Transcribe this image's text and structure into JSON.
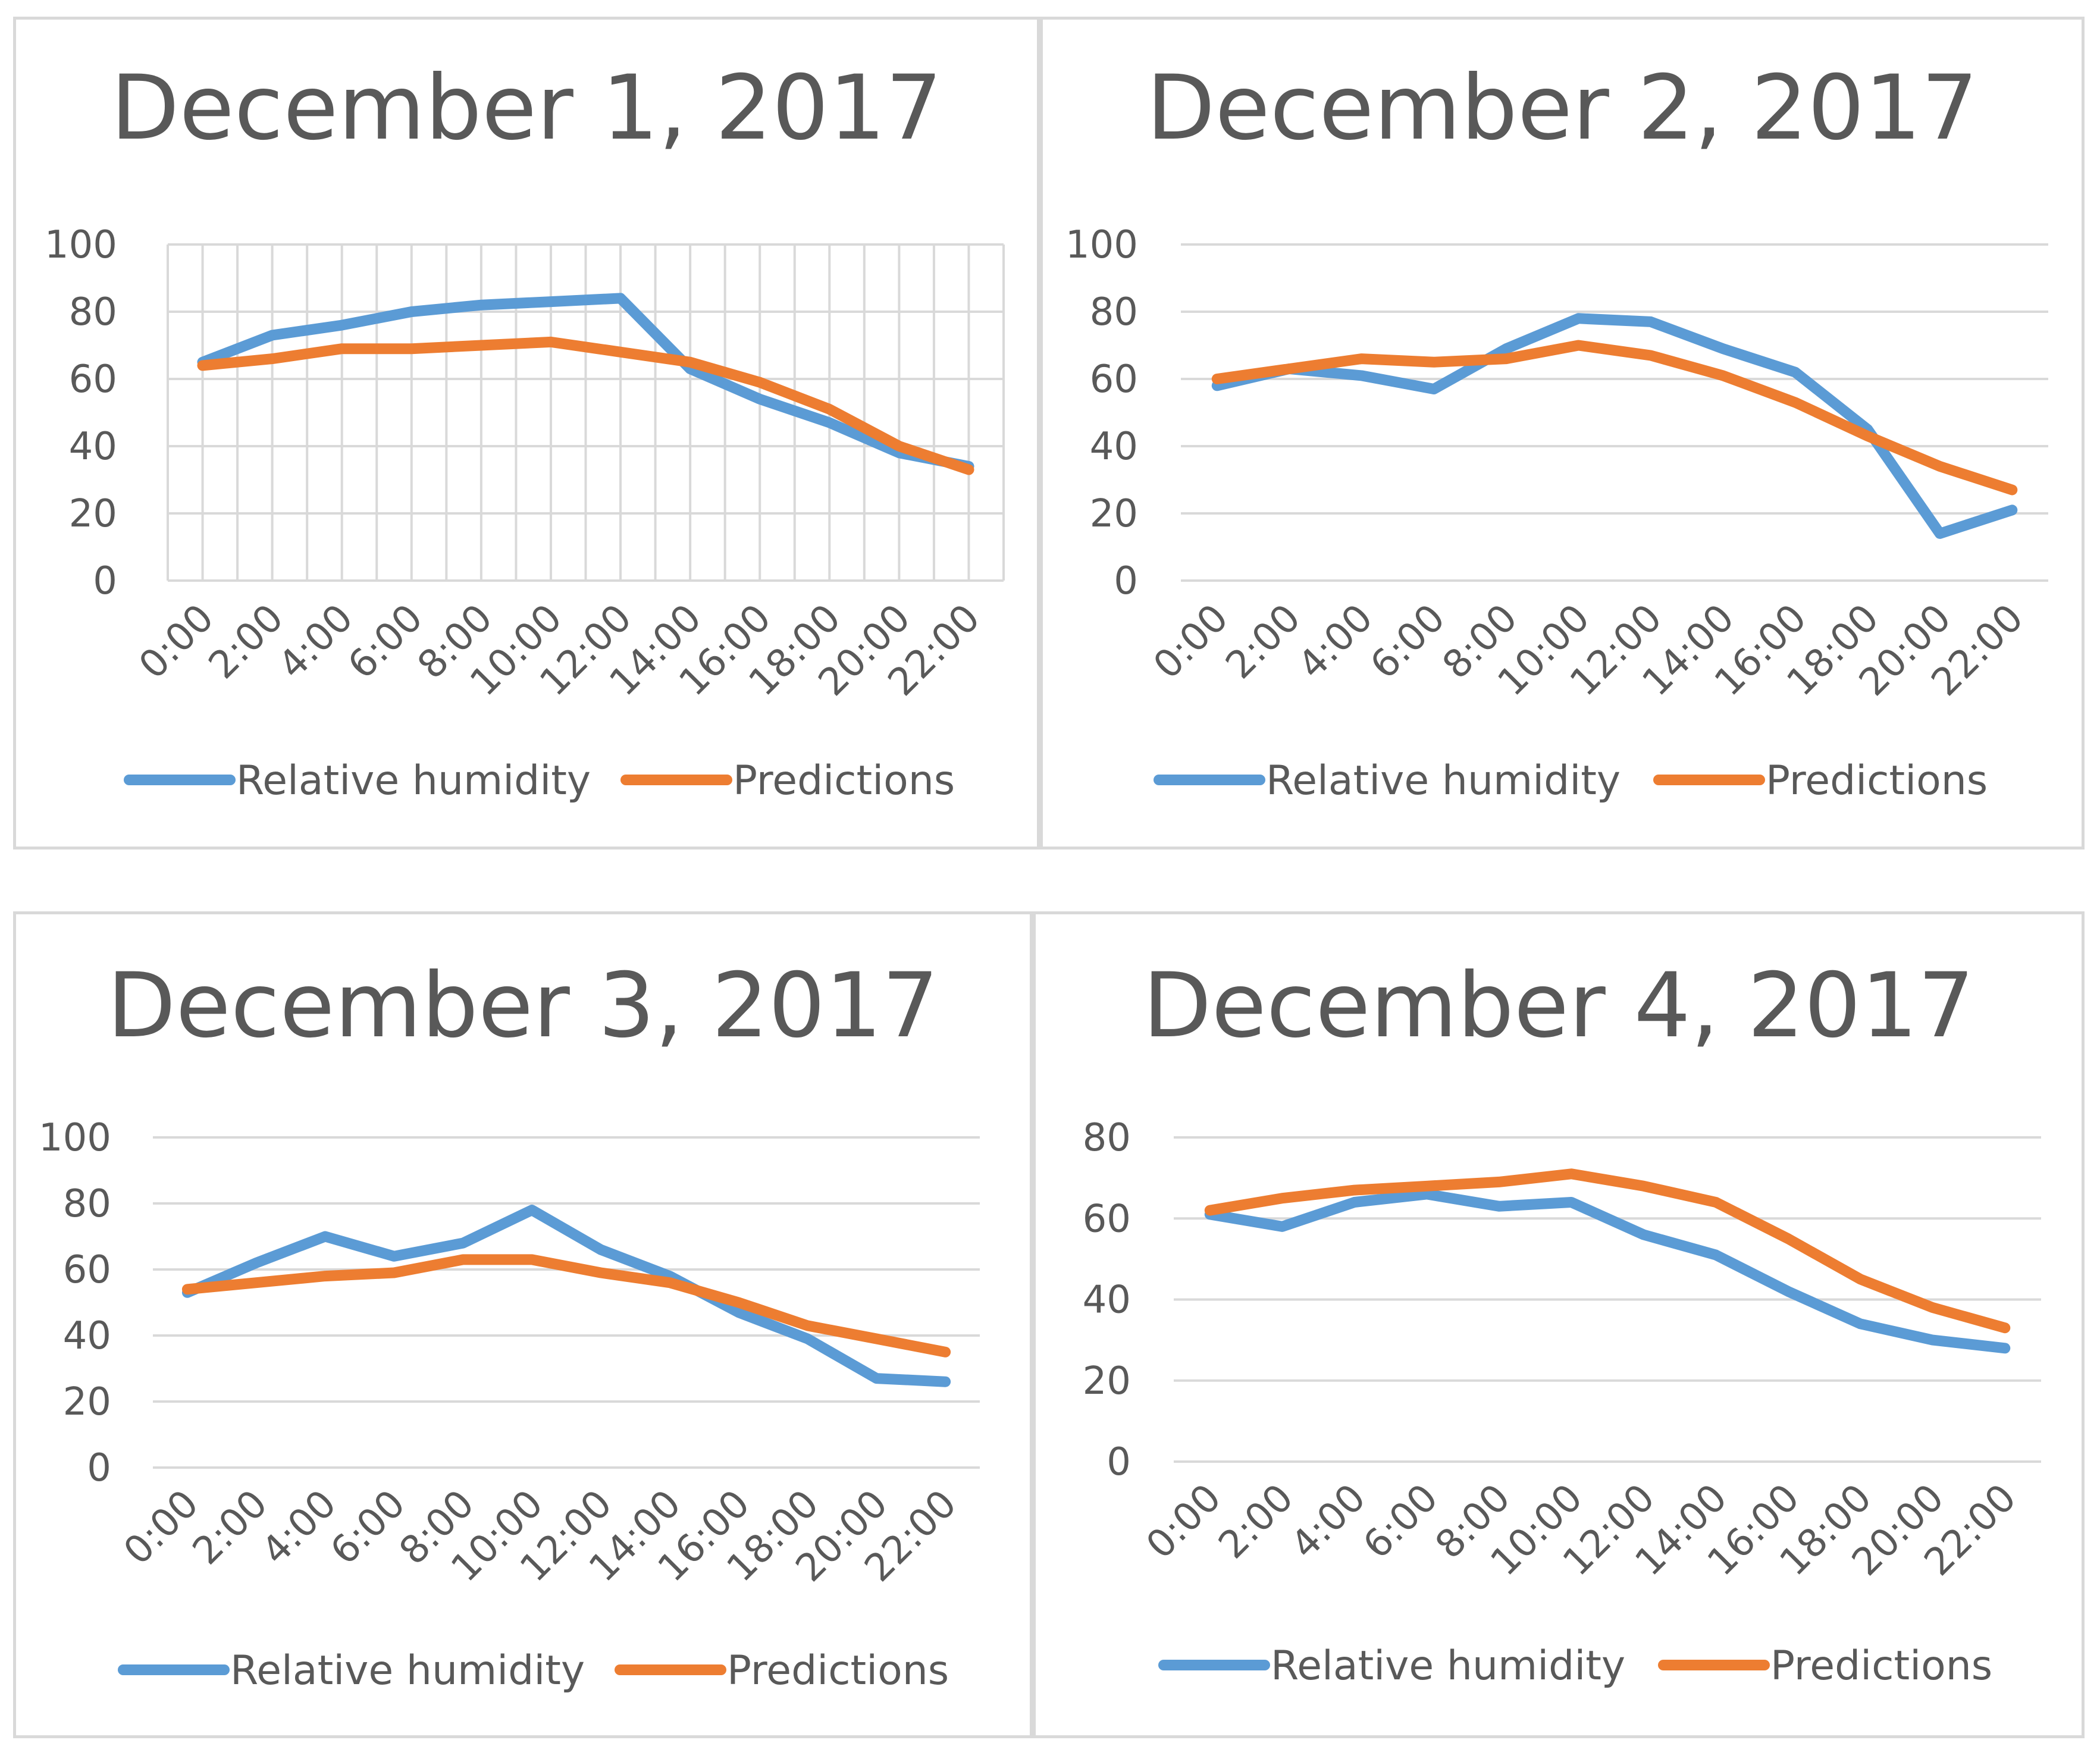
{
  "colors": {
    "humidity": "#5b9bd5",
    "predictions": "#ed7d31"
  },
  "chart_data": [
    {
      "type": "line",
      "title": "December 1, 2017",
      "categories": [
        "0:00",
        "2:00",
        "4:00",
        "6:00",
        "8:00",
        "10:00",
        "12:00",
        "14:00",
        "16:00",
        "18:00",
        "20:00",
        "22:00"
      ],
      "ylim": [
        0,
        100
      ],
      "yticks": [
        0,
        20,
        40,
        60,
        80,
        100
      ],
      "vertical_grid": true,
      "legend_position": "bottom",
      "series": [
        {
          "name": "Relative humidity",
          "values": [
            65,
            73,
            76,
            80,
            82,
            83,
            84,
            63,
            54,
            47,
            38,
            34
          ]
        },
        {
          "name": "Predictions",
          "values": [
            64,
            66,
            69,
            69,
            70,
            71,
            68,
            65,
            59,
            51,
            40,
            33
          ]
        }
      ]
    },
    {
      "type": "line",
      "title": "December 2, 2017",
      "categories": [
        "0:00",
        "2:00",
        "4:00",
        "6:00",
        "8:00",
        "10:00",
        "12:00",
        "14:00",
        "16:00",
        "18:00",
        "20:00",
        "22:00"
      ],
      "ylim": [
        0,
        100
      ],
      "yticks": [
        0,
        20,
        40,
        60,
        80,
        100
      ],
      "vertical_grid": false,
      "legend_position": "bottom",
      "series": [
        {
          "name": "Relative humidity",
          "values": [
            58,
            63,
            61,
            57,
            69,
            78,
            77,
            69,
            62,
            45,
            14,
            21
          ]
        },
        {
          "name": "Predictions",
          "values": [
            60,
            63,
            66,
            65,
            66,
            70,
            67,
            61,
            53,
            43,
            34,
            27
          ]
        }
      ]
    },
    {
      "type": "line",
      "title": "December 3, 2017",
      "categories": [
        "0:00",
        "2:00",
        "4:00",
        "6:00",
        "8:00",
        "10:00",
        "12:00",
        "14:00",
        "16:00",
        "18:00",
        "20:00",
        "22:00"
      ],
      "ylim": [
        0,
        100
      ],
      "yticks": [
        0,
        20,
        40,
        60,
        80,
        100
      ],
      "vertical_grid": false,
      "legend_position": "bottom",
      "series": [
        {
          "name": "Relative humidity",
          "values": [
            53,
            62,
            70,
            64,
            68,
            78,
            66,
            58,
            47,
            39,
            27,
            26
          ]
        },
        {
          "name": "Predictions",
          "values": [
            54,
            56,
            58,
            59,
            63,
            63,
            59,
            56,
            50,
            43,
            39,
            35
          ]
        }
      ]
    },
    {
      "type": "line",
      "title": "December 4, 2017",
      "categories": [
        "0:00",
        "2:00",
        "4:00",
        "6:00",
        "8:00",
        "10:00",
        "12:00",
        "14:00",
        "16:00",
        "18:00",
        "20:00",
        "22:00"
      ],
      "ylim": [
        0,
        80
      ],
      "yticks": [
        0,
        20,
        40,
        60,
        80
      ],
      "vertical_grid": false,
      "legend_position": "bottom",
      "series": [
        {
          "name": "Relative humidity",
          "values": [
            61,
            58,
            64,
            66,
            63,
            64,
            56,
            51,
            42,
            34,
            30,
            28
          ]
        },
        {
          "name": "Predictions",
          "values": [
            62,
            65,
            67,
            68,
            69,
            71,
            68,
            64,
            55,
            45,
            38,
            33
          ]
        }
      ]
    }
  ]
}
